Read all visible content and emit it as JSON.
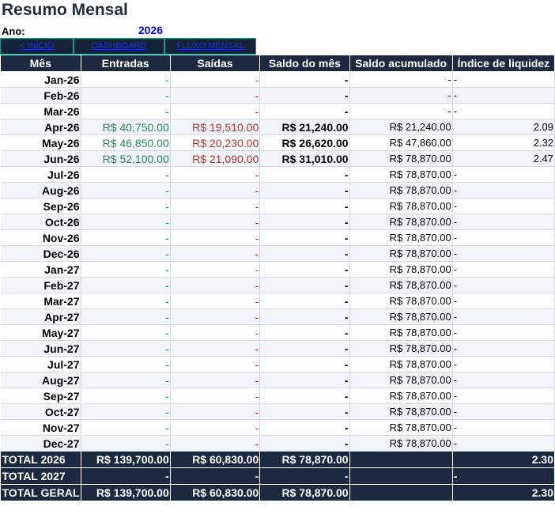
{
  "title": "Resumo Mensal",
  "year": {
    "label": "Ano:",
    "value": "2026"
  },
  "nav": [
    {
      "label": "< INÍCIO",
      "name": "nav-inicio-link"
    },
    {
      "label": "DASHBOARD",
      "name": "nav-dashboard-link"
    },
    {
      "label": "FLUXO MENSAL",
      "name": "nav-fluxo-mensal-link"
    }
  ],
  "headers": [
    "Mês",
    "Entradas",
    "Saídas",
    "Saldo do mês",
    "Saldo acumulado",
    "Índice de liquidez"
  ],
  "rows": [
    {
      "mes": "Jan-26",
      "entradas": "-",
      "saidas": "-",
      "saldo": "-",
      "acumulado": "-",
      "liquidez": "-"
    },
    {
      "mes": "Feb-26",
      "entradas": "-",
      "saidas": "-",
      "saldo": "-",
      "acumulado": "-",
      "liquidez": "-"
    },
    {
      "mes": "Mar-26",
      "entradas": "-",
      "saidas": "-",
      "saldo": "-",
      "acumulado": "-",
      "liquidez": "-"
    },
    {
      "mes": "Apr-26",
      "entradas": "R$ 40,750.00",
      "saidas": "R$ 19,510.00",
      "saldo": "R$ 21,240.00",
      "acumulado": "R$ 21,240.00",
      "liquidez": "2.09"
    },
    {
      "mes": "May-26",
      "entradas": "R$ 46,850.00",
      "saidas": "R$ 20,230.00",
      "saldo": "R$ 26,620.00",
      "acumulado": "R$ 47,860.00",
      "liquidez": "2.32"
    },
    {
      "mes": "Jun-26",
      "entradas": "R$ 52,100.00",
      "saidas": "R$ 21,090.00",
      "saldo": "R$ 31,010.00",
      "acumulado": "R$ 78,870.00",
      "liquidez": "2.47"
    },
    {
      "mes": "Jul-26",
      "entradas": "-",
      "saidas": "-",
      "saldo": "-",
      "acumulado": "R$ 78,870.00",
      "liquidez": "-"
    },
    {
      "mes": "Aug-26",
      "entradas": "-",
      "saidas": "-",
      "saldo": "-",
      "acumulado": "R$ 78,870.00",
      "liquidez": "-"
    },
    {
      "mes": "Sep-26",
      "entradas": "-",
      "saidas": "-",
      "saldo": "-",
      "acumulado": "R$ 78,870.00",
      "liquidez": "-"
    },
    {
      "mes": "Oct-26",
      "entradas": "-",
      "saidas": "-",
      "saldo": "-",
      "acumulado": "R$ 78,870.00",
      "liquidez": "-"
    },
    {
      "mes": "Nov-26",
      "entradas": "-",
      "saidas": "-",
      "saldo": "-",
      "acumulado": "R$ 78,870.00",
      "liquidez": "-"
    },
    {
      "mes": "Dec-26",
      "entradas": "-",
      "saidas": "-",
      "saldo": "-",
      "acumulado": "R$ 78,870.00",
      "liquidez": "-"
    },
    {
      "mes": "Jan-27",
      "entradas": "-",
      "saidas": "-",
      "saldo": "-",
      "acumulado": "R$ 78,870.00",
      "liquidez": "-"
    },
    {
      "mes": "Feb-27",
      "entradas": "-",
      "saidas": "-",
      "saldo": "-",
      "acumulado": "R$ 78,870.00",
      "liquidez": "-"
    },
    {
      "mes": "Mar-27",
      "entradas": "-",
      "saidas": "-",
      "saldo": "-",
      "acumulado": "R$ 78,870.00",
      "liquidez": "-"
    },
    {
      "mes": "Apr-27",
      "entradas": "-",
      "saidas": "-",
      "saldo": "-",
      "acumulado": "R$ 78,870.00",
      "liquidez": "-"
    },
    {
      "mes": "May-27",
      "entradas": "-",
      "saidas": "-",
      "saldo": "-",
      "acumulado": "R$ 78,870.00",
      "liquidez": "-"
    },
    {
      "mes": "Jun-27",
      "entradas": "-",
      "saidas": "-",
      "saldo": "-",
      "acumulado": "R$ 78,870.00",
      "liquidez": "-"
    },
    {
      "mes": "Jul-27",
      "entradas": "-",
      "saidas": "-",
      "saldo": "-",
      "acumulado": "R$ 78,870.00",
      "liquidez": "-"
    },
    {
      "mes": "Aug-27",
      "entradas": "-",
      "saidas": "-",
      "saldo": "-",
      "acumulado": "R$ 78,870.00",
      "liquidez": "-"
    },
    {
      "mes": "Sep-27",
      "entradas": "-",
      "saidas": "-",
      "saldo": "-",
      "acumulado": "R$ 78,870.00",
      "liquidez": "-"
    },
    {
      "mes": "Oct-27",
      "entradas": "-",
      "saidas": "-",
      "saldo": "-",
      "acumulado": "R$ 78,870.00",
      "liquidez": "-"
    },
    {
      "mes": "Nov-27",
      "entradas": "-",
      "saidas": "-",
      "saldo": "-",
      "acumulado": "R$ 78,870.00",
      "liquidez": "-"
    },
    {
      "mes": "Dec-27",
      "entradas": "-",
      "saidas": "-",
      "saldo": "-",
      "acumulado": "R$ 78,870.00",
      "liquidez": "-"
    }
  ],
  "totals": [
    {
      "label": "TOTAL 2026",
      "entradas": "R$ 139,700.00",
      "saidas": "R$ 60,830.00",
      "saldo": "R$ 78,870.00",
      "acumulado": "",
      "liquidez": "2.30"
    },
    {
      "label": "TOTAL 2027",
      "entradas": "-",
      "saidas": "-",
      "saldo": "-",
      "acumulado": "",
      "liquidez": "-"
    },
    {
      "label": "TOTAL GERAL",
      "entradas": "R$ 139,700.00",
      "saidas": "R$ 60,830.00",
      "saldo": "R$ 78,870.00",
      "acumulado": "",
      "liquidez": "2.30"
    }
  ],
  "colors": {
    "header_bg": "#1b2a41",
    "entradas": "#1e8a5a",
    "saidas": "#c0282d",
    "year_value": "#0000ee",
    "nav_border": "#16a085"
  }
}
